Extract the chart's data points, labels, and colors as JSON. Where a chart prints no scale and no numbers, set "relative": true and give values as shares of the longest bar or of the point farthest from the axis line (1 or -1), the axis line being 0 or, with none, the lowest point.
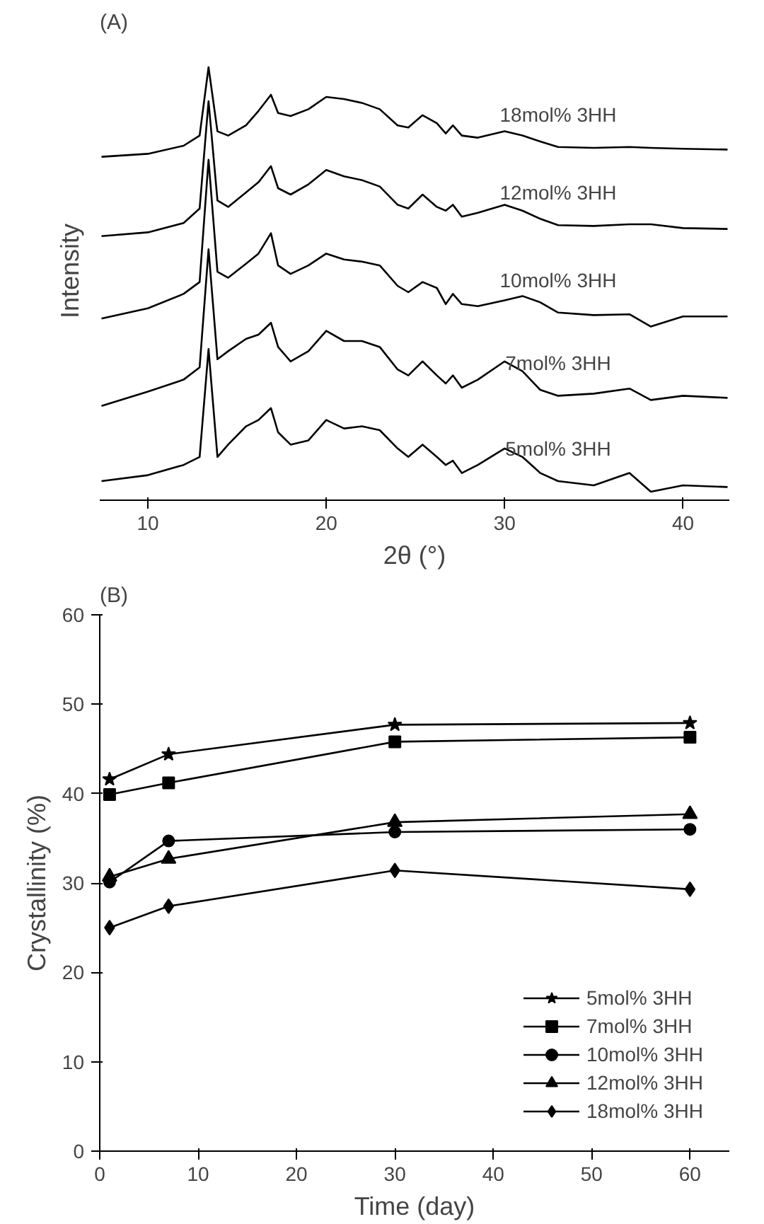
{
  "chart_data": [
    {
      "type": "line",
      "title": "(A)",
      "xlabel": "2θ (°)",
      "ylabel": "Intensity",
      "relative": true,
      "xlim": [
        7.3,
        42.6
      ],
      "xticks": [
        10,
        20,
        30,
        40
      ],
      "tick_labels": "x",
      "grid": false,
      "legend": false,
      "marker": "none",
      "line_style": "solid",
      "x": [
        7.4,
        10,
        12,
        12.9,
        13.4,
        13.9,
        14.5,
        15.5,
        16.2,
        16.9,
        17.3,
        18,
        19,
        20,
        21,
        22,
        23,
        24,
        24.6,
        25.4,
        26.2,
        26.7,
        27.1,
        27.6,
        28.5,
        30,
        31,
        32,
        33,
        35,
        37,
        38.2,
        40,
        42.5
      ],
      "series": [
        {
          "name": "18mol% 3HH",
          "color": "#000000",
          "values": [
            0.789,
            0.796,
            0.815,
            0.839,
            1,
            0.849,
            0.839,
            0.863,
            0.897,
            0.935,
            0.892,
            0.885,
            0.901,
            0.93,
            0.925,
            0.916,
            0.901,
            0.863,
            0.858,
            0.887,
            0.868,
            0.844,
            0.863,
            0.839,
            0.834,
            0.849,
            0.839,
            0.825,
            0.812,
            0.81,
            0.812,
            0.81,
            0.808,
            0.806
          ]
        },
        {
          "name": "12mol% 3HH",
          "color": "#000000",
          "values": [
            0.602,
            0.611,
            0.633,
            0.667,
            0.92,
            0.686,
            0.671,
            0.705,
            0.729,
            0.767,
            0.715,
            0.7,
            0.724,
            0.758,
            0.743,
            0.734,
            0.719,
            0.676,
            0.667,
            0.7,
            0.671,
            0.662,
            0.676,
            0.648,
            0.657,
            0.676,
            0.662,
            0.643,
            0.628,
            0.626,
            0.63,
            0.63,
            0.621,
            0.619
          ]
        },
        {
          "name": "10mol% 3HH",
          "color": "#000000",
          "values": [
            0.408,
            0.432,
            0.466,
            0.494,
            0.782,
            0.518,
            0.504,
            0.537,
            0.561,
            0.609,
            0.533,
            0.513,
            0.533,
            0.561,
            0.547,
            0.542,
            0.533,
            0.485,
            0.47,
            0.494,
            0.48,
            0.442,
            0.466,
            0.442,
            0.437,
            0.451,
            0.461,
            0.446,
            0.422,
            0.416,
            0.418,
            0.389,
            0.413,
            0.413
          ]
        },
        {
          "name": "7mol% 3HH",
          "color": "#000000",
          "values": [
            0.202,
            0.236,
            0.264,
            0.293,
            0.571,
            0.312,
            0.331,
            0.36,
            0.37,
            0.398,
            0.341,
            0.307,
            0.331,
            0.379,
            0.355,
            0.355,
            0.341,
            0.288,
            0.274,
            0.307,
            0.274,
            0.255,
            0.274,
            0.245,
            0.264,
            0.307,
            0.284,
            0.24,
            0.226,
            0.231,
            0.243,
            0.216,
            0.226,
            0.221
          ]
        },
        {
          "name": "5mol% 3HH",
          "color": "#000000",
          "values": [
            0.025,
            0.039,
            0.063,
            0.082,
            0.336,
            0.082,
            0.111,
            0.154,
            0.169,
            0.197,
            0.14,
            0.111,
            0.121,
            0.169,
            0.149,
            0.154,
            0.145,
            0.102,
            0.082,
            0.111,
            0.082,
            0.063,
            0.073,
            0.044,
            0.063,
            0.102,
            0.082,
            0.044,
            0.025,
            0.015,
            0.044,
            0,
            0.015,
            0.011
          ]
        }
      ]
    },
    {
      "type": "line",
      "title": "(B)",
      "xlabel": "Time (day)",
      "ylabel": "Crystallinity (%)",
      "xlim": [
        0,
        64
      ],
      "xticks": [
        0,
        10,
        20,
        30,
        40,
        50,
        60
      ],
      "ylim": [
        0,
        60
      ],
      "yticks": [
        0,
        10,
        20,
        30,
        40,
        50,
        60
      ],
      "grid": false,
      "legend": "bottom right",
      "line_style": "solid",
      "x": [
        1,
        7,
        30,
        60
      ],
      "series": [
        {
          "name": "5mol% 3HH",
          "color": "#000000",
          "marker": "star",
          "values": [
            41.6,
            44.4,
            47.7,
            47.9
          ]
        },
        {
          "name": "7mol% 3HH",
          "color": "#000000",
          "marker": "square",
          "values": [
            39.9,
            41.2,
            45.8,
            46.3
          ]
        },
        {
          "name": "10mol% 3HH",
          "color": "#000000",
          "marker": "circle",
          "values": [
            30.1,
            34.7,
            35.7,
            36.0
          ]
        },
        {
          "name": "12mol% 3HH",
          "color": "#000000",
          "marker": "triangle",
          "values": [
            30.7,
            32.7,
            36.8,
            37.7
          ]
        },
        {
          "name": "18mol% 3HH",
          "color": "#000000",
          "marker": "diamond",
          "values": [
            25.0,
            27.4,
            31.4,
            29.3
          ]
        }
      ]
    }
  ]
}
